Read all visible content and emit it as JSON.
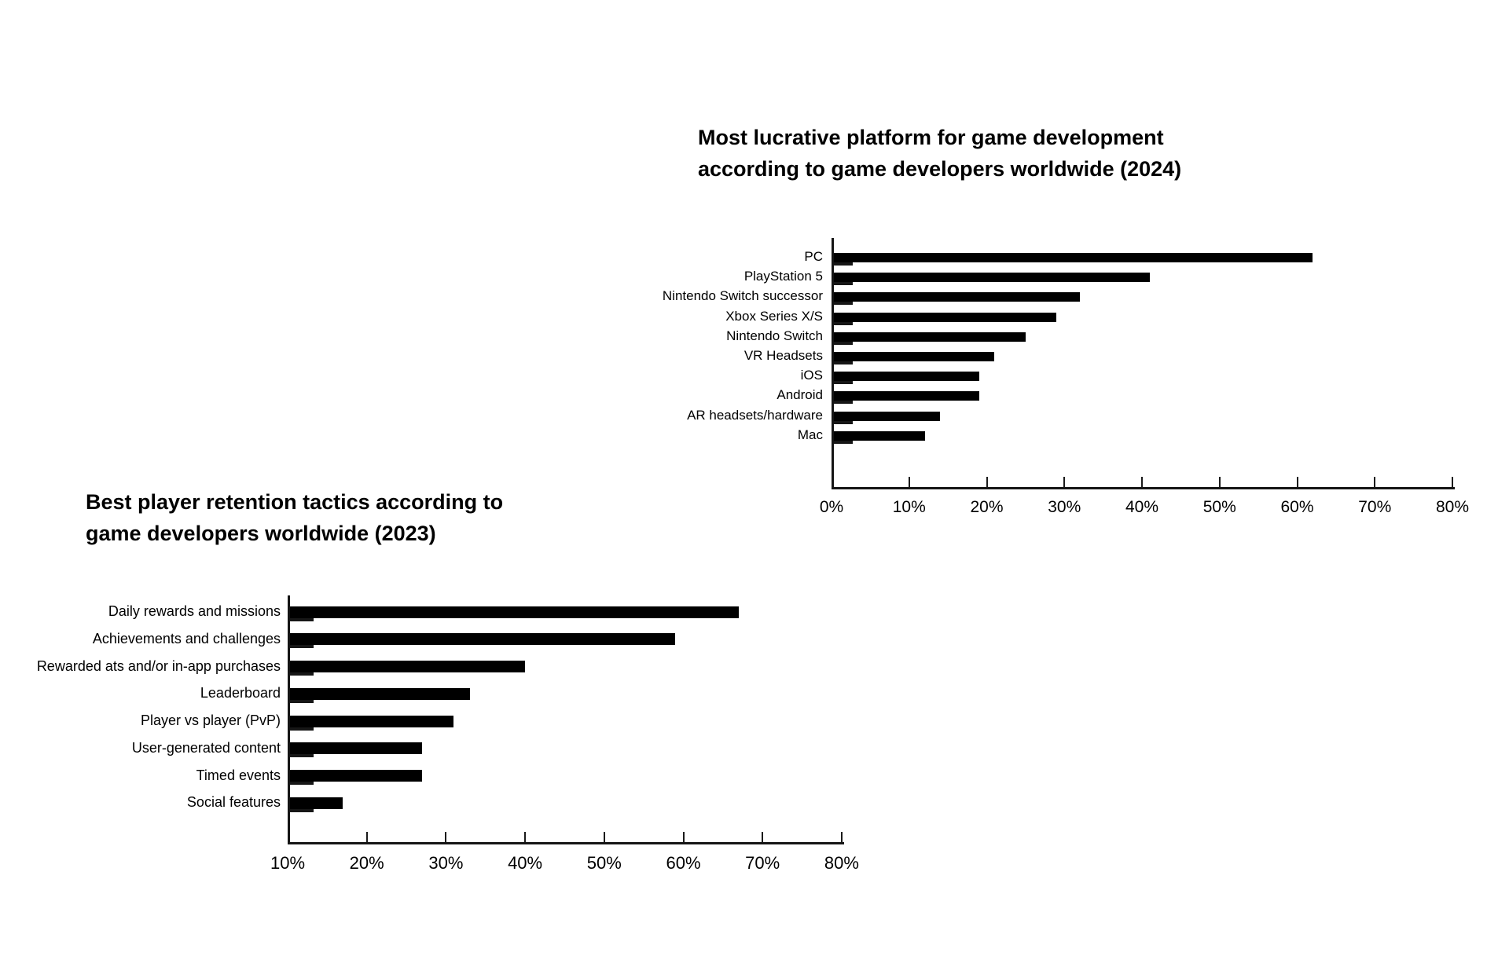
{
  "page": {
    "background": "#ffffff",
    "text_color": "#000000",
    "bar_color": "#000000"
  },
  "chart_data": [
    {
      "type": "bar",
      "orientation": "horizontal",
      "title": "Most lucrative platform for game development according to game developers worldwide (2024)",
      "title_lines": [
        "Most lucrative platform for game development",
        "according to game developers worldwide (2024)"
      ],
      "categories": [
        "PC",
        "PlayStation 5",
        "Nintendo Switch successor",
        "Xbox Series X/S",
        "Nintendo Switch",
        "VR Headsets",
        "iOS",
        "Android",
        "AR headsets/hardware",
        "Mac"
      ],
      "values": [
        62,
        41,
        32,
        29,
        25,
        21,
        19,
        19,
        14,
        12
      ],
      "unit": "%",
      "xlim": [
        0,
        80
      ],
      "xtick_step": 10,
      "xticks": [
        "0%",
        "10%",
        "20%",
        "30%",
        "40%",
        "50%",
        "60%",
        "70%",
        "80%"
      ],
      "xlabel": "",
      "ylabel": "",
      "grid": false,
      "legend": null,
      "bar_color": "#000000"
    },
    {
      "type": "bar",
      "orientation": "horizontal",
      "title": "Best player retention tactics according to game developers worldwide (2023)",
      "title_lines": [
        "Best player retention tactics according to",
        "game developers worldwide (2023)"
      ],
      "categories": [
        "Daily rewards and missions",
        "Achievements and challenges",
        "Rewarded ats and/or in-app purchases",
        "Leaderboard",
        "Player vs player (PvP)",
        "User-generated content",
        "Timed events",
        "Social features"
      ],
      "values": [
        67,
        59,
        40,
        33,
        31,
        27,
        27,
        17
      ],
      "unit": "%",
      "xlim": [
        10,
        80
      ],
      "xtick_step": 10,
      "xticks": [
        "10%",
        "20%",
        "30%",
        "40%",
        "50%",
        "60%",
        "70%",
        "80%"
      ],
      "xlabel": "",
      "ylabel": "",
      "grid": false,
      "legend": null,
      "bar_color": "#000000"
    }
  ]
}
